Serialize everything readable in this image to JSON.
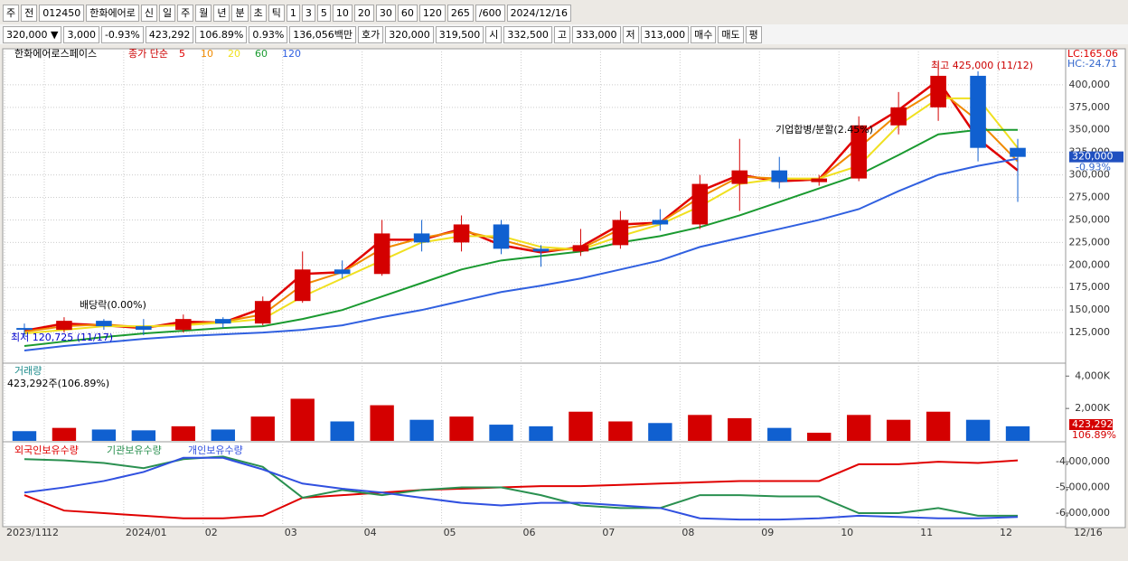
{
  "toolbar": [
    "주",
    "전",
    "012450",
    "한화에어로",
    "신",
    "일",
    "주",
    "월",
    "년",
    "분",
    "초",
    "틱",
    "1",
    "3",
    "5",
    "10",
    "20",
    "30",
    "60",
    "120",
    "265",
    "/600",
    "2024/12/16"
  ],
  "info_bar": [
    "320,000 ▼",
    "3,000",
    "-0.93%",
    "423,292",
    "106.89%",
    "0.93%",
    "136,056백만",
    "호가",
    "320,000",
    "319,500",
    "시",
    "332,500",
    "고",
    "333,000",
    "저",
    "313,000",
    "매수",
    "매도",
    "평"
  ],
  "chart_data": [
    {
      "type": "candlestick",
      "title": "한화에어로스페이스",
      "subtitle": "종가 단순",
      "grid": true,
      "categories": [
        "2023/11",
        "12",
        null,
        "2024/01",
        null,
        "02",
        null,
        "03",
        null,
        "04",
        null,
        "05",
        null,
        "06",
        null,
        "07",
        null,
        "08",
        null,
        "09",
        null,
        "10",
        null,
        "11",
        null,
        "12"
      ],
      "x_end_label": "12/16",
      "open": [
        130000,
        128000,
        138000,
        132000,
        128000,
        140000,
        135000,
        160000,
        195000,
        190000,
        235000,
        225000,
        245000,
        218000,
        215000,
        222000,
        250000,
        245000,
        290000,
        305000,
        292000,
        296000,
        355000,
        375000,
        410000,
        330000
      ],
      "high": [
        135000,
        142000,
        140000,
        140000,
        145000,
        142000,
        165000,
        215000,
        205000,
        250000,
        250000,
        255000,
        250000,
        222000,
        240000,
        260000,
        262000,
        300000,
        340000,
        320000,
        300000,
        365000,
        392000,
        425000,
        415000,
        340000
      ],
      "low": [
        120725,
        125000,
        128000,
        122000,
        125000,
        130000,
        133000,
        158000,
        185000,
        188000,
        215000,
        215000,
        212000,
        198000,
        210000,
        218000,
        238000,
        240000,
        260000,
        285000,
        288000,
        293000,
        345000,
        360000,
        315000,
        270000
      ],
      "close": [
        128000,
        138000,
        132000,
        128000,
        140000,
        135000,
        160000,
        195000,
        190000,
        235000,
        225000,
        245000,
        218000,
        215000,
        222000,
        250000,
        245000,
        290000,
        305000,
        292000,
        296000,
        355000,
        375000,
        410000,
        330000,
        320000
      ],
      "up_color": "#d40000",
      "down_color": "#1060d0",
      "series": [
        {
          "name": "5",
          "color": "#e00000",
          "values": [
            127000,
            135000,
            133000,
            130000,
            137000,
            136000,
            152000,
            190000,
            192000,
            228000,
            228000,
            240000,
            222000,
            214000,
            220000,
            245000,
            247000,
            282000,
            300000,
            293000,
            295000,
            345000,
            372000,
            405000,
            340000,
            305000
          ]
        },
        {
          "name": "10",
          "color": "#f08a00",
          "values": [
            126000,
            132000,
            134000,
            131000,
            134000,
            137000,
            145000,
            178000,
            192000,
            218000,
            230000,
            238000,
            228000,
            216000,
            218000,
            240000,
            247000,
            275000,
            298000,
            296000,
            295000,
            330000,
            368000,
            395000,
            360000,
            315000
          ]
        },
        {
          "name": "20",
          "color": "#f0e020",
          "values": [
            124000,
            128000,
            132000,
            132000,
            133000,
            136000,
            140000,
            165000,
            185000,
            205000,
            225000,
            232000,
            232000,
            220000,
            217000,
            232000,
            245000,
            265000,
            290000,
            296000,
            296000,
            310000,
            355000,
            385000,
            385000,
            330000
          ]
        },
        {
          "name": "60",
          "color": "#1a9a30",
          "values": [
            110000,
            115000,
            120000,
            124000,
            127000,
            130000,
            132000,
            140000,
            150000,
            165000,
            180000,
            195000,
            205000,
            210000,
            215000,
            225000,
            232000,
            242000,
            255000,
            270000,
            285000,
            300000,
            322000,
            345000,
            350000,
            350000
          ]
        },
        {
          "name": "120",
          "color": "#3060e0",
          "values": [
            105000,
            110000,
            114000,
            118000,
            121000,
            123000,
            125000,
            128000,
            133000,
            142000,
            150000,
            160000,
            170000,
            177000,
            185000,
            195000,
            205000,
            220000,
            230000,
            240000,
            250000,
            262000,
            282000,
            300000,
            310000,
            318000
          ]
        }
      ],
      "ylim": [
        93000,
        437000
      ],
      "yticks": [
        {
          "value": 125000,
          "label": "125,000"
        },
        {
          "value": 150000,
          "label": "150,000"
        },
        {
          "value": 175000,
          "label": "175,000"
        },
        {
          "value": 200000,
          "label": "200,000"
        },
        {
          "value": 225000,
          "label": "225,000"
        },
        {
          "value": 250000,
          "label": "250,000"
        },
        {
          "value": 275000,
          "label": "275,000"
        },
        {
          "value": 300000,
          "label": "300,000"
        },
        {
          "value": 325000,
          "label": "325,000"
        },
        {
          "value": 350000,
          "label": "350,000"
        },
        {
          "value": 375000,
          "label": "375,000"
        },
        {
          "value": 400000,
          "label": "400,000"
        }
      ],
      "annotations": [
        "최고 425,000 (11/12)",
        "최저 120,725 (11/17)",
        "배당락(0.00%)",
        "기업합병/분할(2.45%)"
      ],
      "lc_label": "LC:165.06",
      "hc_label": "HC:-24.71",
      "last_price_label": "320,000",
      "last_change_label": "-0.93%"
    },
    {
      "type": "bar",
      "title": "거래량",
      "subtitle": "423,292주(106.89%)",
      "values": [
        600000,
        800000,
        700000,
        650000,
        900000,
        700000,
        1500000,
        2600000,
        1200000,
        2200000,
        1300000,
        1500000,
        1000000,
        900000,
        1800000,
        1200000,
        1100000,
        1600000,
        1400000,
        800000,
        500000,
        1600000,
        1300000,
        1800000,
        1300000,
        900000
      ],
      "ylim": [
        0,
        4630000
      ],
      "yticks": [
        {
          "value": 2000000,
          "label": "2,000K"
        },
        {
          "value": 4000000,
          "label": "4,000K"
        }
      ],
      "last_volume_label": "423,292",
      "last_ratio_label": "106.89%"
    },
    {
      "type": "line",
      "series": [
        {
          "name": "외국인보유수량",
          "color": "#e00000",
          "values": [
            -5300000,
            -5900000,
            -6000000,
            -6100000,
            -6200000,
            -6200000,
            -6100000,
            -5400000,
            -5300000,
            -5200000,
            -5100000,
            -5050000,
            -5000000,
            -4950000,
            -4950000,
            -4900000,
            -4850000,
            -4800000,
            -4750000,
            -4750000,
            -4750000,
            -4100000,
            -4100000,
            -4000000,
            -4050000,
            -3950000
          ]
        },
        {
          "name": "기관보유수량",
          "color": "#2a9050",
          "values": [
            -3900000,
            -3950000,
            -4050000,
            -4250000,
            -3900000,
            -3800000,
            -4200000,
            -5400000,
            -5100000,
            -5300000,
            -5100000,
            -5000000,
            -5000000,
            -5300000,
            -5700000,
            -5800000,
            -5800000,
            -5300000,
            -5300000,
            -5350000,
            -5350000,
            -6000000,
            -6000000,
            -5800000,
            -6100000,
            -6100000
          ]
        },
        {
          "name": "개인보유수량",
          "color": "#3050e0",
          "values": [
            -5200000,
            -5000000,
            -4750000,
            -4400000,
            -3850000,
            -3850000,
            -4300000,
            -4850000,
            -5050000,
            -5200000,
            -5400000,
            -5600000,
            -5700000,
            -5600000,
            -5600000,
            -5700000,
            -5800000,
            -6200000,
            -6250000,
            -6250000,
            -6200000,
            -6100000,
            -6150000,
            -6200000,
            -6200000,
            -6150000
          ]
        }
      ],
      "ylim": [
        -6420000,
        -3330000
      ],
      "yticks": [
        {
          "value": -6000000,
          "label": "-6,000,000"
        },
        {
          "value": -5000000,
          "label": "-5,000,000"
        },
        {
          "value": -4000000,
          "label": "-4,000,000"
        }
      ]
    }
  ]
}
